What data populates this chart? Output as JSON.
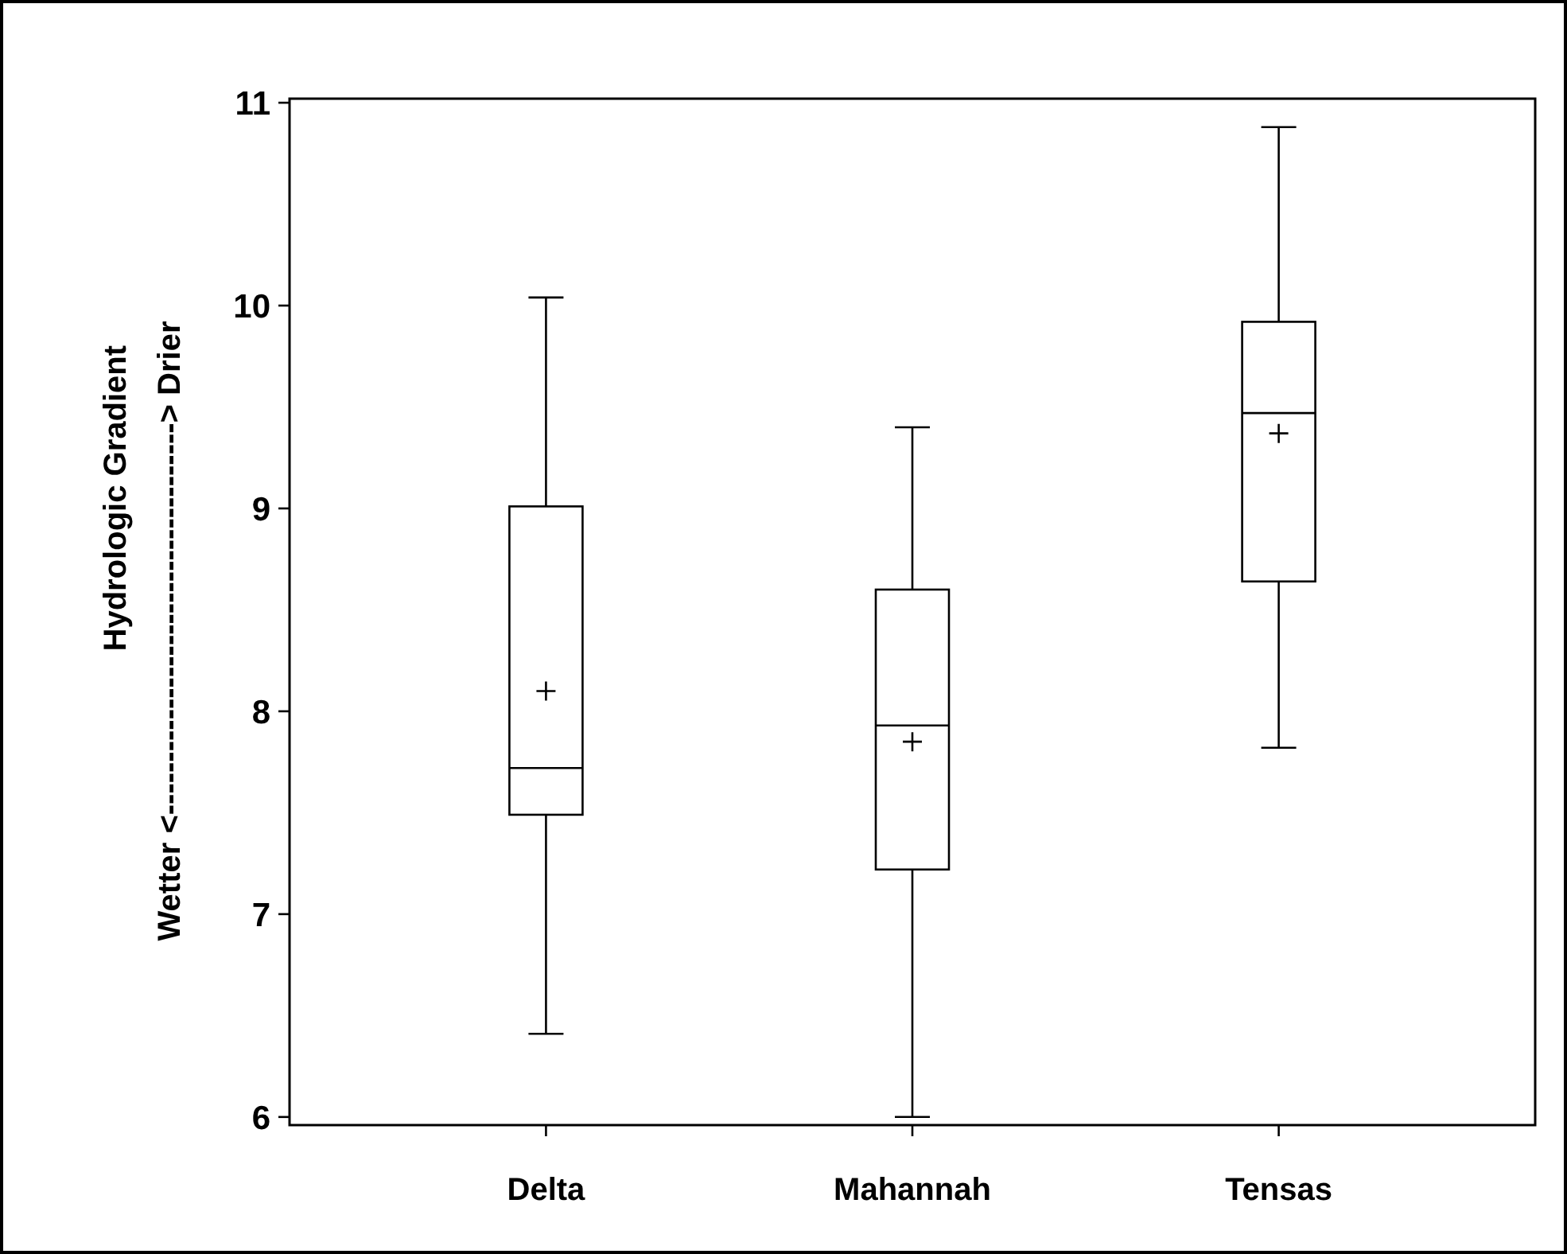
{
  "chart_data": {
    "type": "box",
    "categories": [
      "Delta",
      "Mahannah",
      "Tensas"
    ],
    "boxes": [
      {
        "low": 6.41,
        "q1": 7.49,
        "median": 7.72,
        "q3": 9.01,
        "high": 10.04,
        "mean": 8.1
      },
      {
        "low": 6.0,
        "q1": 7.22,
        "median": 7.93,
        "q3": 8.6,
        "high": 9.4,
        "mean": 7.85
      },
      {
        "low": 7.82,
        "q1": 8.64,
        "median": 9.47,
        "q3": 9.92,
        "high": 10.88,
        "mean": 9.37
      }
    ],
    "ylabel": "Hydrologic Gradient",
    "annotations": [
      "Wetter <-------------------------------------> Drier"
    ],
    "ylim": [
      5.96,
      11.02
    ],
    "yticks": [
      6,
      7,
      8,
      9,
      10,
      11
    ],
    "grid": false
  }
}
